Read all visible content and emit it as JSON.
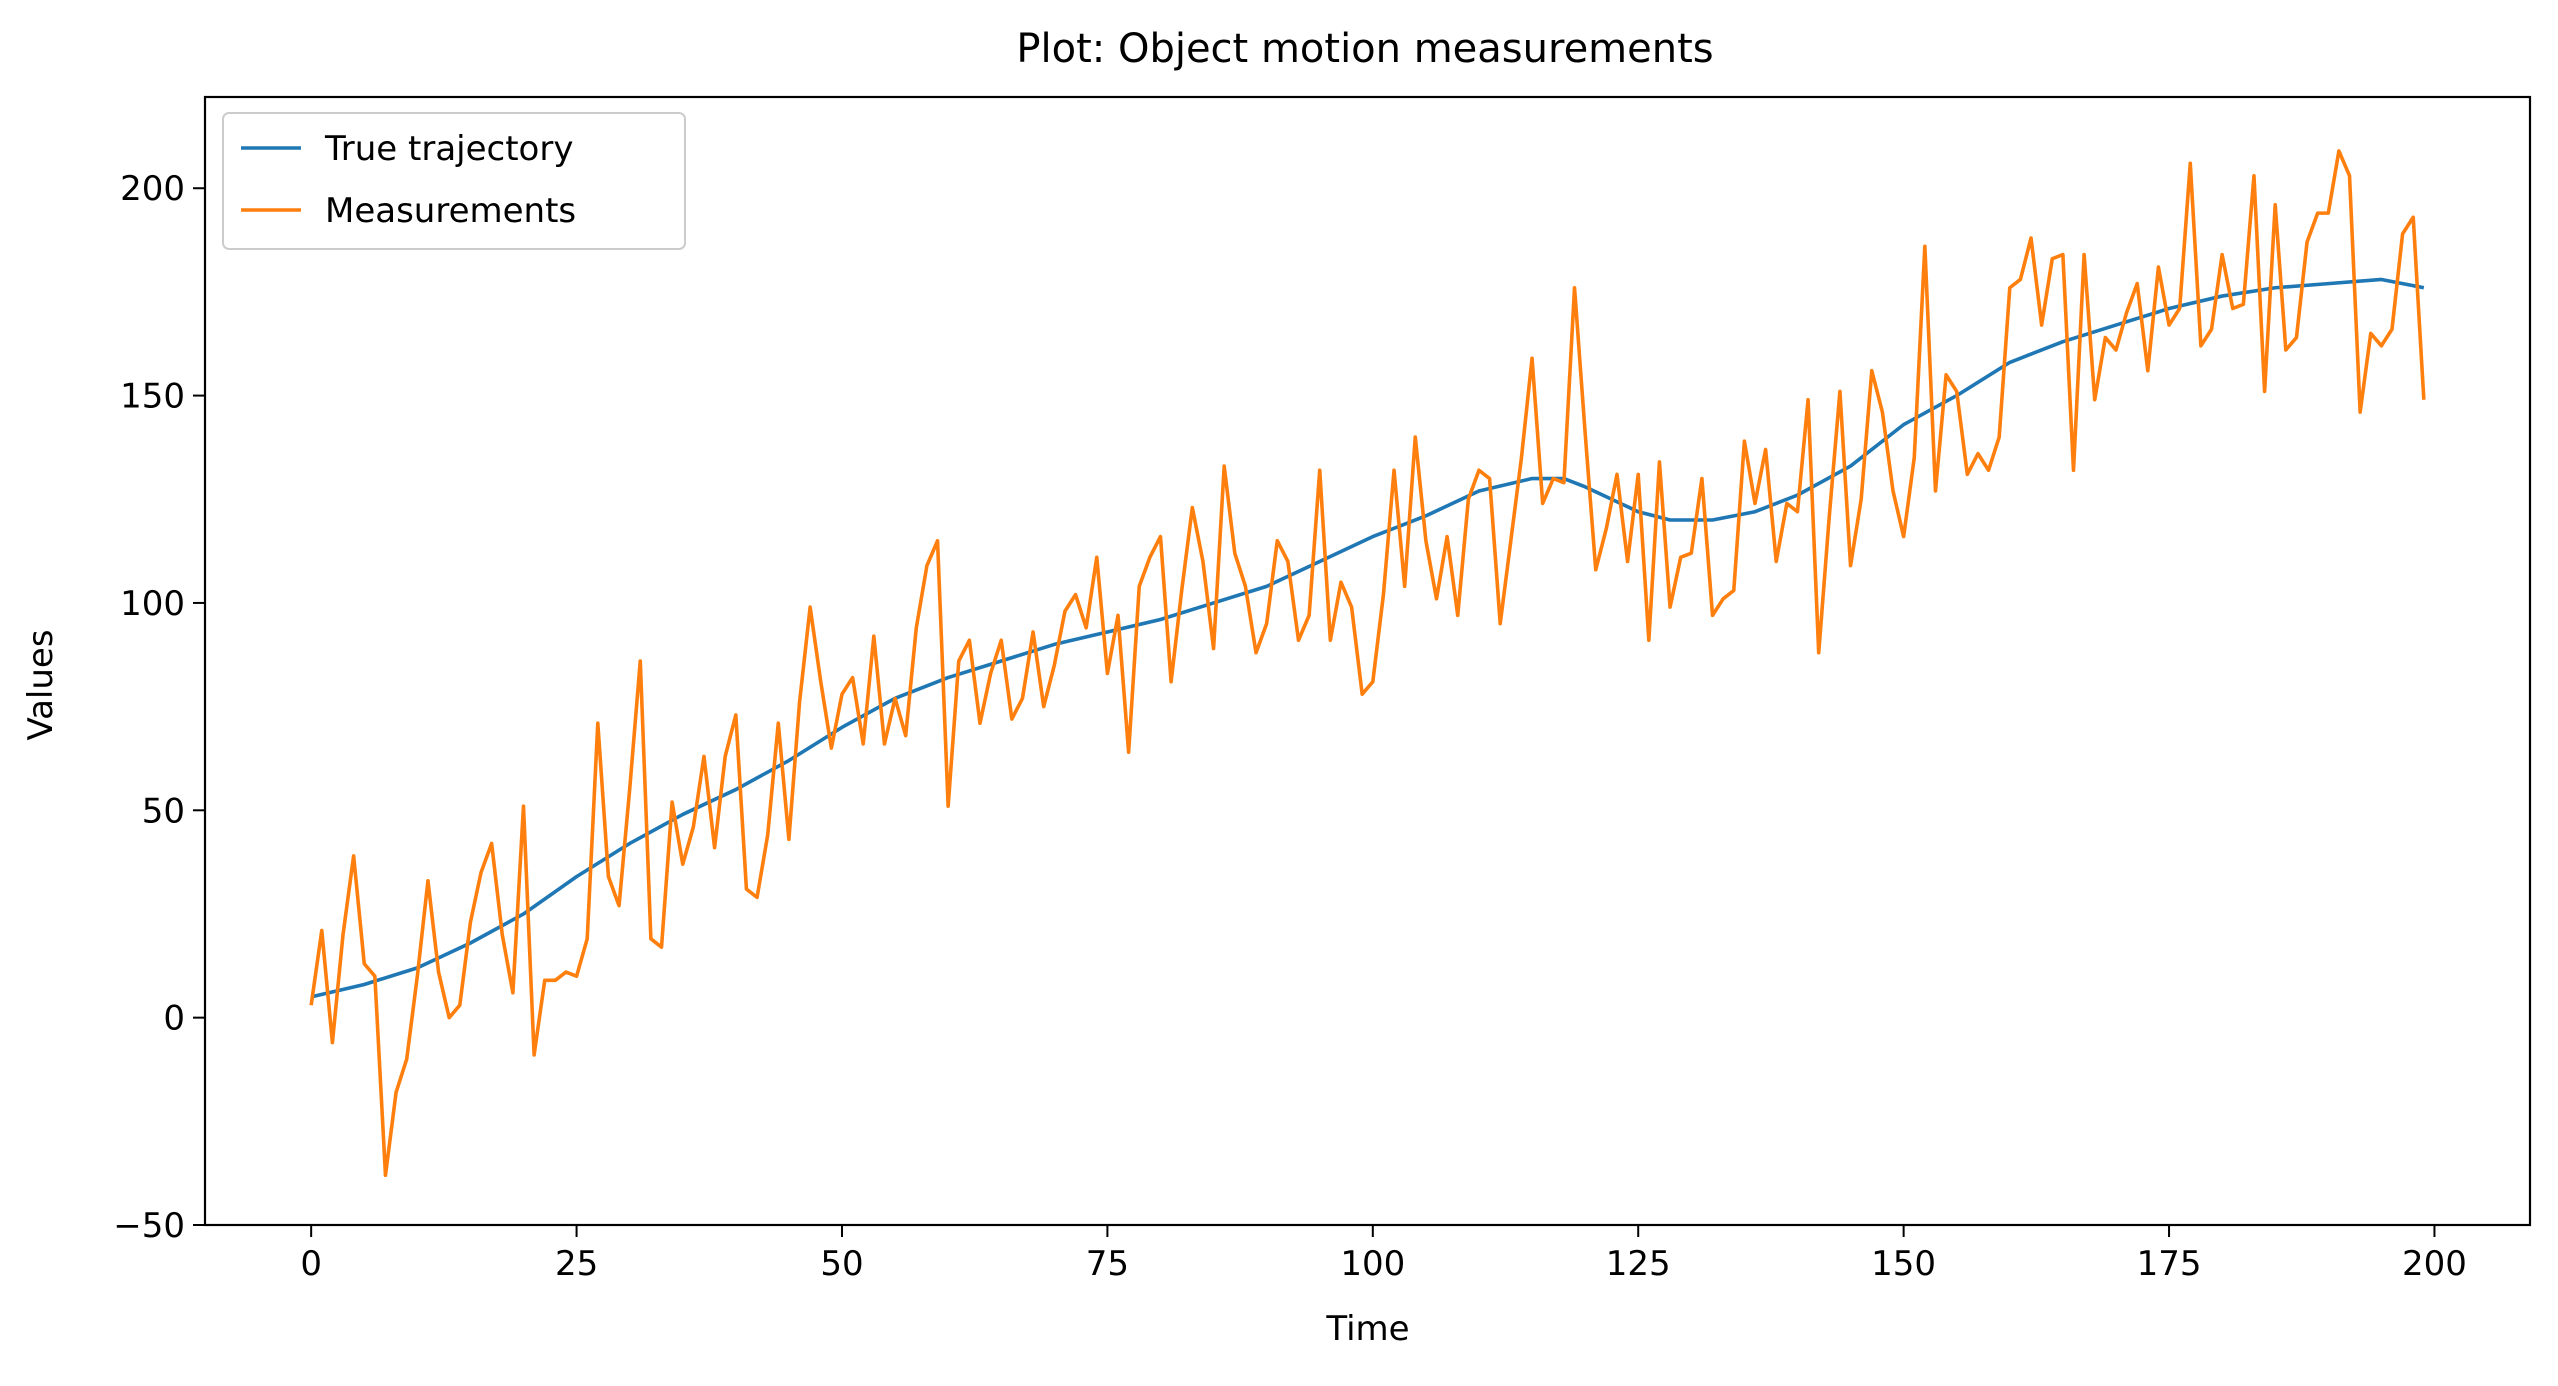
{
  "chart_data": {
    "type": "line",
    "title": "Plot: Object motion measurements",
    "xlabel": "Time",
    "ylabel": "Values",
    "xlim": [
      -10,
      209
    ],
    "ylim": [
      -50,
      222
    ],
    "xticks": [
      0,
      25,
      50,
      75,
      100,
      125,
      150,
      175,
      200
    ],
    "yticks": [
      -50,
      0,
      50,
      100,
      150,
      200
    ],
    "xtick_labels": [
      "0",
      "25",
      "50",
      "75",
      "100",
      "125",
      "150",
      "175",
      "200"
    ],
    "ytick_labels": [
      "−50",
      "0",
      "50",
      "100",
      "150",
      "200"
    ],
    "grid": false,
    "legend_position": "top-left",
    "series": [
      {
        "name": "True trajectory",
        "color": "#1f77b4",
        "x": [
          0,
          5,
          10,
          15,
          20,
          25,
          30,
          35,
          40,
          45,
          50,
          55,
          60,
          65,
          70,
          75,
          80,
          85,
          90,
          95,
          100,
          105,
          110,
          115,
          118,
          120,
          125,
          128,
          132,
          136,
          140,
          145,
          150,
          155,
          160,
          165,
          170,
          175,
          180,
          185,
          190,
          195,
          199
        ],
        "y": [
          5,
          8,
          12,
          18,
          25,
          34,
          42,
          49,
          55,
          62,
          70,
          77,
          82,
          86,
          90,
          93,
          96,
          100,
          104,
          110,
          116,
          121,
          127,
          130,
          130,
          128,
          122,
          120,
          120,
          122,
          126,
          133,
          143,
          150,
          158,
          163,
          167,
          171,
          174,
          176,
          177,
          178,
          176
        ]
      },
      {
        "name": "Measurements",
        "color": "#ff7f0e",
        "x": [
          0,
          1,
          2,
          3,
          4,
          5,
          6,
          7,
          8,
          9,
          10,
          11,
          12,
          13,
          14,
          15,
          16,
          17,
          18,
          19,
          20,
          21,
          22,
          23,
          24,
          25,
          26,
          27,
          28,
          29,
          30,
          31,
          32,
          33,
          34,
          35,
          36,
          37,
          38,
          39,
          40,
          41,
          42,
          43,
          44,
          45,
          46,
          47,
          48,
          49,
          50,
          51,
          52,
          53,
          54,
          55,
          56,
          57,
          58,
          59,
          60,
          61,
          62,
          63,
          64,
          65,
          66,
          67,
          68,
          69,
          70,
          71,
          72,
          73,
          74,
          75,
          76,
          77,
          78,
          79,
          80,
          81,
          82,
          83,
          84,
          85,
          86,
          87,
          88,
          89,
          90,
          91,
          92,
          93,
          94,
          95,
          96,
          97,
          98,
          99,
          100,
          101,
          102,
          103,
          104,
          105,
          106,
          107,
          108,
          109,
          110,
          111,
          112,
          113,
          114,
          115,
          116,
          117,
          118,
          119,
          120,
          121,
          122,
          123,
          124,
          125,
          126,
          127,
          128,
          129,
          130,
          131,
          132,
          133,
          134,
          135,
          136,
          137,
          138,
          139,
          140,
          141,
          142,
          143,
          144,
          145,
          146,
          147,
          148,
          149,
          150,
          151,
          152,
          153,
          154,
          155,
          156,
          157,
          158,
          159,
          160,
          161,
          162,
          163,
          164,
          165,
          166,
          167,
          168,
          169,
          170,
          171,
          172,
          173,
          174,
          175,
          176,
          177,
          178,
          179,
          180,
          181,
          182,
          183,
          184,
          185,
          186,
          187,
          188,
          189,
          190,
          191,
          192,
          193,
          194,
          195,
          196,
          197,
          198,
          199
        ],
        "y": [
          3,
          21,
          -6,
          20,
          39,
          13,
          10,
          -38,
          -18,
          -10,
          10,
          33,
          11,
          0,
          3,
          23,
          35,
          42,
          20,
          6,
          51,
          -9,
          9,
          9,
          11,
          10,
          19,
          71,
          34,
          27,
          55,
          86,
          19,
          17,
          52,
          37,
          46,
          63,
          41,
          63,
          73,
          31,
          29,
          44,
          71,
          43,
          76,
          99,
          81,
          65,
          78,
          82,
          66,
          92,
          66,
          77,
          68,
          94,
          109,
          115,
          51,
          86,
          91,
          71,
          83,
          91,
          72,
          77,
          93,
          75,
          85,
          98,
          102,
          94,
          111,
          83,
          97,
          64,
          104,
          111,
          116,
          81,
          103,
          123,
          110,
          89,
          133,
          112,
          104,
          88,
          95,
          115,
          110,
          91,
          97,
          132,
          91,
          105,
          99,
          78,
          81,
          102,
          132,
          104,
          140,
          115,
          101,
          116,
          97,
          125,
          132,
          130,
          95,
          115,
          135,
          159,
          124,
          130,
          129,
          176,
          141,
          108,
          118,
          131,
          110,
          131,
          91,
          134,
          99,
          111,
          112,
          130,
          97,
          101,
          103,
          139,
          124,
          137,
          110,
          124,
          122,
          149,
          88,
          121,
          151,
          109,
          125,
          156,
          146,
          127,
          116,
          135,
          186,
          127,
          155,
          151,
          131,
          136,
          132,
          140,
          176,
          178,
          188,
          167,
          183,
          184,
          132,
          184,
          149,
          164,
          161,
          170,
          177,
          156,
          181,
          167,
          171,
          206,
          162,
          166,
          184,
          171,
          172,
          203,
          151,
          196,
          161,
          164,
          187,
          194,
          194,
          209,
          203,
          146,
          165,
          162,
          166,
          189,
          193,
          149
        ]
      }
    ]
  }
}
